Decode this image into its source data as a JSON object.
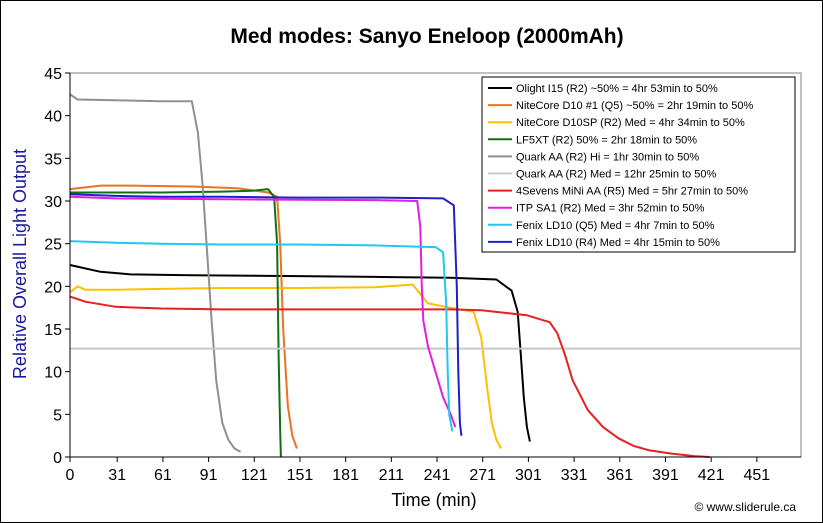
{
  "chart_data": {
    "type": "line",
    "title": "Med modes: Sanyo Eneloop (2000mAh)",
    "xlabel": "Time (min)",
    "ylabel": "Relative Overall Light Output",
    "credit": "© www.sliderule.ca",
    "xlim": [
      0,
      480
    ],
    "ylim": [
      0,
      45
    ],
    "xticks": [
      0,
      31,
      61,
      91,
      121,
      151,
      181,
      211,
      241,
      271,
      301,
      331,
      361,
      391,
      421,
      451
    ],
    "yticks": [
      0,
      5,
      10,
      15,
      20,
      25,
      30,
      35,
      40,
      45
    ],
    "grid": false,
    "legend_position": "top-right",
    "series": [
      {
        "name": "Olight I15 (R2) ~50% = 4hr 53min to 50%",
        "color": "#000000",
        "x": [
          0,
          20,
          40,
          80,
          150,
          200,
          250,
          280,
          290,
          294,
          296,
          298,
          300,
          302
        ],
        "y": [
          22.5,
          21.7,
          21.4,
          21.3,
          21.2,
          21.1,
          21.0,
          20.8,
          19.5,
          17,
          12,
          7,
          3.5,
          1.8
        ]
      },
      {
        "name": "NiteCore D10 #1 (Q5) ~50% = 2hr 19min to 50%",
        "color": "#f07020",
        "x": [
          0,
          20,
          40,
          80,
          110,
          130,
          136,
          138,
          140,
          143,
          146,
          149
        ],
        "y": [
          31.4,
          31.8,
          31.8,
          31.7,
          31.5,
          31.0,
          30.5,
          25,
          15,
          6,
          2.5,
          1.0
        ]
      },
      {
        "name": "NiteCore D10SP (R2) Med = 4hr 34min to 50%",
        "color": "#ffc000",
        "x": [
          0,
          5,
          10,
          30,
          60,
          100,
          150,
          200,
          225,
          235,
          250,
          265,
          270,
          274,
          277,
          280,
          283
        ],
        "y": [
          19.3,
          20.0,
          19.6,
          19.6,
          19.7,
          19.8,
          19.8,
          19.9,
          20.2,
          18.0,
          17.5,
          17.0,
          14,
          8,
          4,
          2,
          1.0
        ]
      },
      {
        "name": "LF5XT (R2) 50% = 2hr 18min to 50%",
        "color": "#107010",
        "x": [
          0,
          20,
          60,
          100,
          120,
          130,
          134,
          136,
          137,
          138,
          138.5
        ],
        "y": [
          31.0,
          31.0,
          31.0,
          31.1,
          31.2,
          31.4,
          30.5,
          25,
          12,
          3,
          0
        ]
      },
      {
        "name": "Quark AA (R2) Hi = 1hr 30min to 50%",
        "color": "#909090",
        "x": [
          0,
          5,
          30,
          60,
          80,
          84,
          87,
          90,
          93,
          96,
          100,
          104,
          108,
          112
        ],
        "y": [
          42.5,
          41.9,
          41.8,
          41.7,
          41.7,
          38,
          32,
          24,
          16,
          9,
          4,
          2,
          1,
          0.6
        ]
      },
      {
        "name": "Quark AA (R2) Med = 12hr 25min to 50%",
        "color": "#c8c8c8",
        "x": [
          0,
          100,
          200,
          300,
          400,
          480
        ],
        "y": [
          12.7,
          12.7,
          12.7,
          12.7,
          12.7,
          12.7
        ]
      },
      {
        "name": "4Sevens MiNi AA (R5) Med = 5hr 27min to 50%",
        "color": "#e82020",
        "x": [
          0,
          10,
          30,
          60,
          100,
          150,
          200,
          250,
          270,
          300,
          315,
          320,
          325,
          330,
          340,
          350,
          360,
          370,
          380,
          395,
          410,
          420
        ],
        "y": [
          18.8,
          18.2,
          17.6,
          17.4,
          17.3,
          17.3,
          17.3,
          17.3,
          17.2,
          16.6,
          15.8,
          14.5,
          12,
          9,
          5.5,
          3.5,
          2.2,
          1.3,
          0.8,
          0.4,
          0.1,
          0
        ]
      },
      {
        "name": "ITP SA1 (R2) Med = 3hr 52min to 50%",
        "color": "#e020e0",
        "x": [
          0,
          30,
          100,
          200,
          228,
          230,
          231,
          232,
          235,
          240,
          245,
          250,
          253
        ],
        "y": [
          30.5,
          30.3,
          30.2,
          30.1,
          30.0,
          27,
          20,
          16,
          13,
          10,
          7,
          5,
          3.5
        ]
      },
      {
        "name": "Fenix LD10 (Q5) Med = 4hr 7min to 50%",
        "color": "#20c8f0",
        "x": [
          0,
          30,
          60,
          100,
          150,
          200,
          240,
          245,
          247,
          248,
          249,
          251
        ],
        "y": [
          25.3,
          25.1,
          25.0,
          24.9,
          24.9,
          24.8,
          24.6,
          24.0,
          18,
          10,
          5,
          3.0
        ]
      },
      {
        "name": "Fenix LD10 (R4) Med = 4hr 15min to 50%",
        "color": "#2020c8",
        "x": [
          0,
          30,
          60,
          100,
          150,
          200,
          245,
          252,
          254,
          255,
          256,
          257
        ],
        "y": [
          30.8,
          30.6,
          30.5,
          30.5,
          30.4,
          30.4,
          30.3,
          29.5,
          20,
          10,
          4,
          2.5
        ]
      }
    ]
  }
}
